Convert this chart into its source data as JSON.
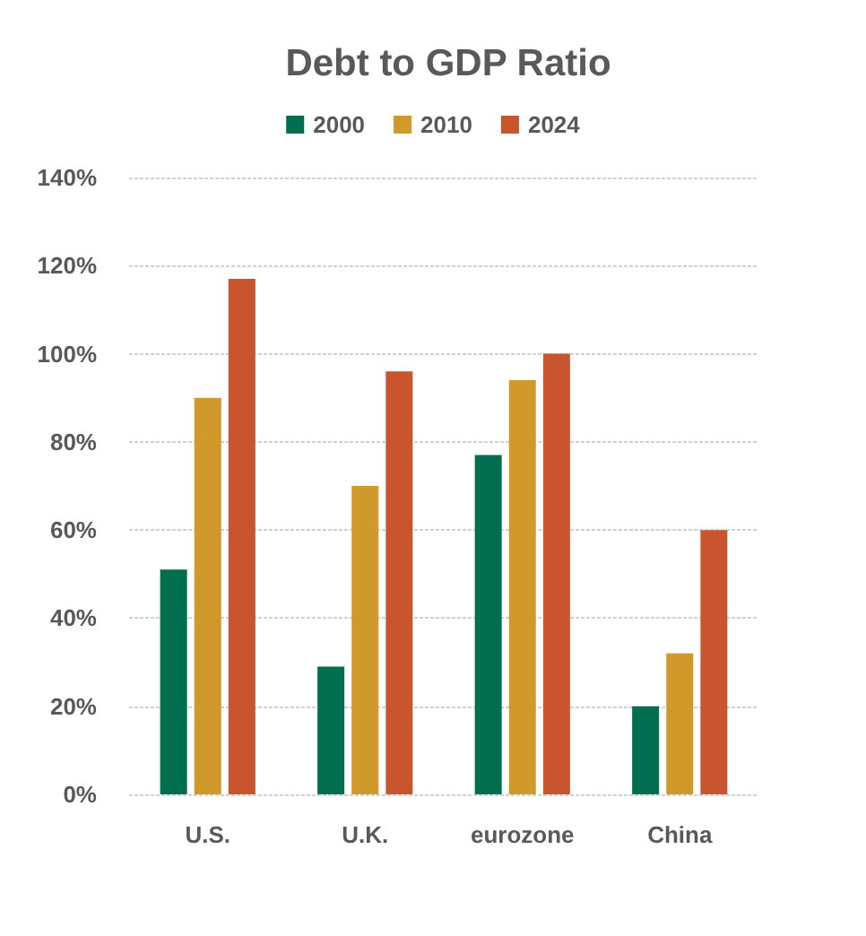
{
  "chart_data": {
    "type": "bar",
    "title": "Debt to GDP Ratio",
    "categories": [
      "U.S.",
      "U.K.",
      "eurozone",
      "China"
    ],
    "series": [
      {
        "name": "2000",
        "color": "#006e4f",
        "values": [
          51,
          29,
          77,
          20
        ]
      },
      {
        "name": "2010",
        "color": "#d1982a",
        "values": [
          90,
          70,
          94,
          32
        ]
      },
      {
        "name": "2024",
        "color": "#c9552f",
        "values": [
          117,
          96,
          100,
          60
        ]
      }
    ],
    "ylim": [
      0,
      140
    ],
    "yticks": [
      {
        "value": 0,
        "label": "0%"
      },
      {
        "value": 20,
        "label": "20%"
      },
      {
        "value": 40,
        "label": "40%"
      },
      {
        "value": 60,
        "label": "60%"
      },
      {
        "value": 80,
        "label": "80%"
      },
      {
        "value": 100,
        "label": "100%"
      },
      {
        "value": 120,
        "label": "120%"
      },
      {
        "value": 140,
        "label": "140%"
      }
    ],
    "grid": "y",
    "legend": "top"
  }
}
